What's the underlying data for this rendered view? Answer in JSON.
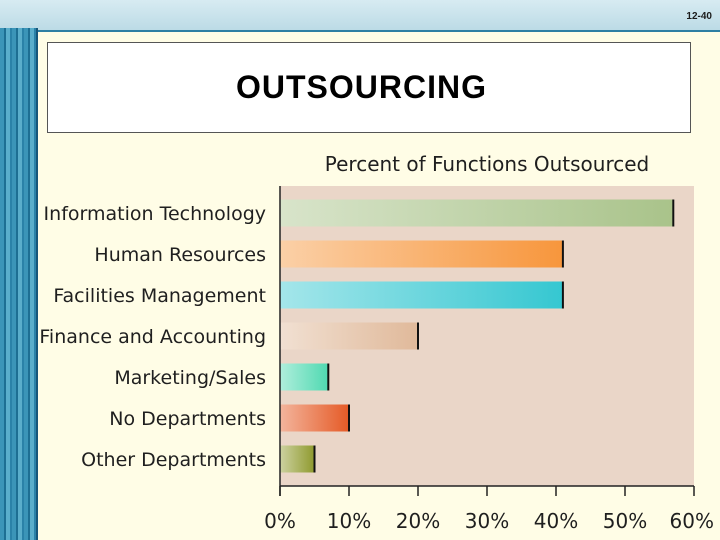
{
  "slide": {
    "number": "12-40",
    "title": "OUTSOURCING"
  },
  "chart_data": {
    "type": "bar",
    "orientation": "horizontal",
    "title": "Percent of Functions Outsourced",
    "categories": [
      "Information Technology",
      "Human Resources",
      "Facilities Management",
      "Finance and Accounting",
      "Marketing/Sales",
      "No Departments",
      "Other Departments"
    ],
    "values": [
      57,
      41,
      41,
      20,
      7,
      10,
      5
    ],
    "xlim": [
      0,
      60
    ],
    "x_ticks": [
      "0%",
      "10%",
      "20%",
      "30%",
      "40%",
      "50%",
      "60%"
    ],
    "grid": false,
    "colors": [
      "#a9c38a",
      "#f7963c",
      "#35c7d1",
      "#e0b99a",
      "#4fd9b1",
      "#e55a26",
      "#8f9a2e"
    ],
    "plot_background": "#ead6c8"
  }
}
